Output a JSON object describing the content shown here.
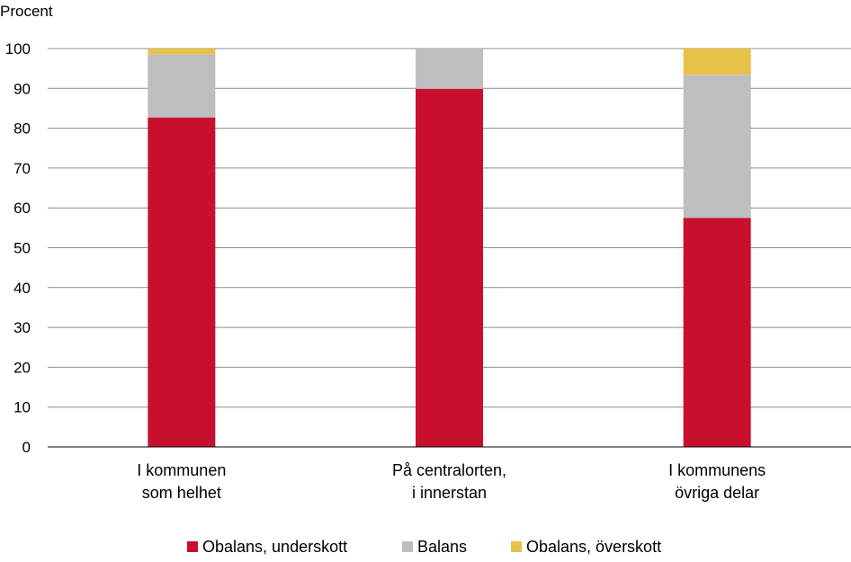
{
  "chart_data": {
    "type": "bar",
    "stacked": true,
    "y_unit_label": "Procent",
    "ylim": [
      0,
      100
    ],
    "y_ticks": [
      0,
      10,
      20,
      30,
      40,
      50,
      60,
      70,
      80,
      90,
      100
    ],
    "grid": true,
    "legend_position": "bottom",
    "categories": [
      [
        "I kommunen",
        "som helhet"
      ],
      [
        "På centralorten,",
        "i innerstan"
      ],
      [
        "I kommunens",
        "övriga delar"
      ]
    ],
    "series": [
      {
        "name": "Obalans, underskott",
        "color": "#c8102e",
        "values": [
          82.7,
          89.9,
          57.5
        ]
      },
      {
        "name": "Balans",
        "color": "#bcbec0",
        "values": [
          15.8,
          10.1,
          35.9
        ]
      },
      {
        "name": "Obalans, överskott",
        "color": "#e8c14a",
        "values": [
          1.5,
          0.0,
          6.6
        ]
      }
    ]
  }
}
